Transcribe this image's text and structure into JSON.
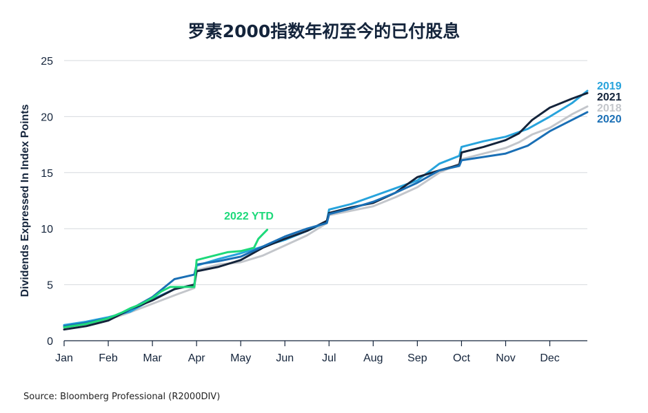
{
  "chart_data": {
    "type": "line",
    "title": "罗素2000指数年初至今的已付股息",
    "ylabel": "Dividends Expressed In Index Points",
    "xlabel": "",
    "ylim": [
      0,
      25
    ],
    "y_ticks": [
      0,
      5,
      10,
      15,
      20,
      25
    ],
    "months": [
      "Jan",
      "Feb",
      "Mar",
      "Apr",
      "May",
      "Jun",
      "Jul",
      "Aug",
      "Sep",
      "Oct",
      "Nov",
      "Dec"
    ],
    "grid": "horizontal",
    "source": "Source: Bloomberg Professional (R2000DIV)",
    "x_unit": "month index (Jan start = 0)",
    "series": [
      {
        "name": "2018",
        "color": "#c3c6cb",
        "points": [
          [
            0,
            1.2
          ],
          [
            0.5,
            1.5
          ],
          [
            1,
            1.9
          ],
          [
            1.4,
            2.4
          ],
          [
            1.8,
            3.0
          ],
          [
            2.2,
            3.6
          ],
          [
            2.6,
            4.2
          ],
          [
            2.95,
            4.7
          ],
          [
            3.0,
            6.3
          ],
          [
            3.5,
            6.8
          ],
          [
            4.0,
            7.0
          ],
          [
            4.5,
            7.6
          ],
          [
            5.0,
            8.5
          ],
          [
            5.5,
            9.4
          ],
          [
            5.95,
            10.5
          ],
          [
            6.0,
            11.2
          ],
          [
            6.5,
            11.6
          ],
          [
            7.0,
            12.0
          ],
          [
            7.5,
            12.8
          ],
          [
            8.0,
            13.7
          ],
          [
            8.5,
            15.0
          ],
          [
            8.95,
            15.8
          ],
          [
            9.0,
            16.2
          ],
          [
            9.5,
            16.7
          ],
          [
            10.0,
            17.2
          ],
          [
            10.3,
            17.7
          ],
          [
            10.6,
            18.4
          ],
          [
            11.0,
            19.0
          ],
          [
            11.5,
            20.2
          ],
          [
            11.85,
            20.9
          ]
        ]
      },
      {
        "name": "2019",
        "color": "#27a3dc",
        "points": [
          [
            0,
            1.4
          ],
          [
            0.5,
            1.7
          ],
          [
            1,
            2.1
          ],
          [
            1.5,
            2.6
          ],
          [
            2.0,
            3.7
          ],
          [
            2.5,
            4.6
          ],
          [
            2.95,
            5.0
          ],
          [
            3.0,
            6.7
          ],
          [
            3.5,
            7.3
          ],
          [
            4.0,
            7.8
          ],
          [
            4.5,
            8.4
          ],
          [
            5.0,
            9.0
          ],
          [
            5.5,
            9.8
          ],
          [
            5.95,
            10.6
          ],
          [
            6.0,
            11.7
          ],
          [
            6.5,
            12.2
          ],
          [
            7.0,
            12.9
          ],
          [
            7.5,
            13.6
          ],
          [
            8.0,
            14.3
          ],
          [
            8.5,
            15.8
          ],
          [
            8.95,
            16.5
          ],
          [
            9.0,
            17.3
          ],
          [
            9.5,
            17.8
          ],
          [
            10.0,
            18.2
          ],
          [
            10.5,
            18.9
          ],
          [
            11.0,
            20.0
          ],
          [
            11.5,
            21.2
          ],
          [
            11.85,
            22.3
          ]
        ]
      },
      {
        "name": "2021",
        "color": "#14243b",
        "points": [
          [
            0,
            1.0
          ],
          [
            0.5,
            1.3
          ],
          [
            1,
            1.8
          ],
          [
            1.5,
            2.8
          ],
          [
            2.0,
            3.6
          ],
          [
            2.5,
            4.6
          ],
          [
            2.95,
            5.0
          ],
          [
            3.0,
            6.2
          ],
          [
            3.5,
            6.6
          ],
          [
            4.0,
            7.2
          ],
          [
            4.5,
            8.3
          ],
          [
            5.0,
            9.1
          ],
          [
            5.5,
            9.8
          ],
          [
            5.95,
            10.7
          ],
          [
            6.0,
            11.4
          ],
          [
            6.5,
            11.9
          ],
          [
            7.0,
            12.3
          ],
          [
            7.5,
            13.2
          ],
          [
            8.0,
            14.6
          ],
          [
            8.5,
            15.2
          ],
          [
            8.95,
            15.7
          ],
          [
            9.0,
            16.8
          ],
          [
            9.5,
            17.3
          ],
          [
            10.0,
            17.9
          ],
          [
            10.3,
            18.5
          ],
          [
            10.6,
            19.7
          ],
          [
            11.0,
            20.8
          ],
          [
            11.5,
            21.6
          ],
          [
            11.85,
            22.1
          ]
        ]
      },
      {
        "name": "2020",
        "color": "#1a6fb5",
        "points": [
          [
            0,
            1.3
          ],
          [
            0.5,
            1.6
          ],
          [
            1,
            2.0
          ],
          [
            1.5,
            2.8
          ],
          [
            2.0,
            3.9
          ],
          [
            2.5,
            5.5
          ],
          [
            2.95,
            5.9
          ],
          [
            3.0,
            6.8
          ],
          [
            3.5,
            7.1
          ],
          [
            4.0,
            7.5
          ],
          [
            4.5,
            8.4
          ],
          [
            5.0,
            9.3
          ],
          [
            5.5,
            10.0
          ],
          [
            5.95,
            10.5
          ],
          [
            6.0,
            11.3
          ],
          [
            6.5,
            11.8
          ],
          [
            7.0,
            12.4
          ],
          [
            7.5,
            13.2
          ],
          [
            8.0,
            14.1
          ],
          [
            8.5,
            15.2
          ],
          [
            8.95,
            15.6
          ],
          [
            9.0,
            16.1
          ],
          [
            9.5,
            16.4
          ],
          [
            10.0,
            16.7
          ],
          [
            10.5,
            17.4
          ],
          [
            11.0,
            18.7
          ],
          [
            11.5,
            19.7
          ],
          [
            11.85,
            20.4
          ]
        ]
      },
      {
        "name": "2022 YTD",
        "color": "#1dd97a",
        "points": [
          [
            0,
            1.2
          ],
          [
            0.5,
            1.5
          ],
          [
            1,
            2.0
          ],
          [
            1.3,
            2.5
          ],
          [
            1.5,
            2.9
          ],
          [
            1.7,
            3.2
          ],
          [
            2.0,
            3.8
          ],
          [
            2.2,
            4.4
          ],
          [
            2.4,
            4.8
          ],
          [
            2.95,
            4.8
          ],
          [
            3.0,
            7.2
          ],
          [
            3.3,
            7.5
          ],
          [
            3.7,
            7.9
          ],
          [
            4.0,
            8.0
          ],
          [
            4.3,
            8.3
          ],
          [
            4.4,
            9.1
          ],
          [
            4.5,
            9.5
          ],
          [
            4.6,
            9.9
          ]
        ]
      }
    ]
  }
}
